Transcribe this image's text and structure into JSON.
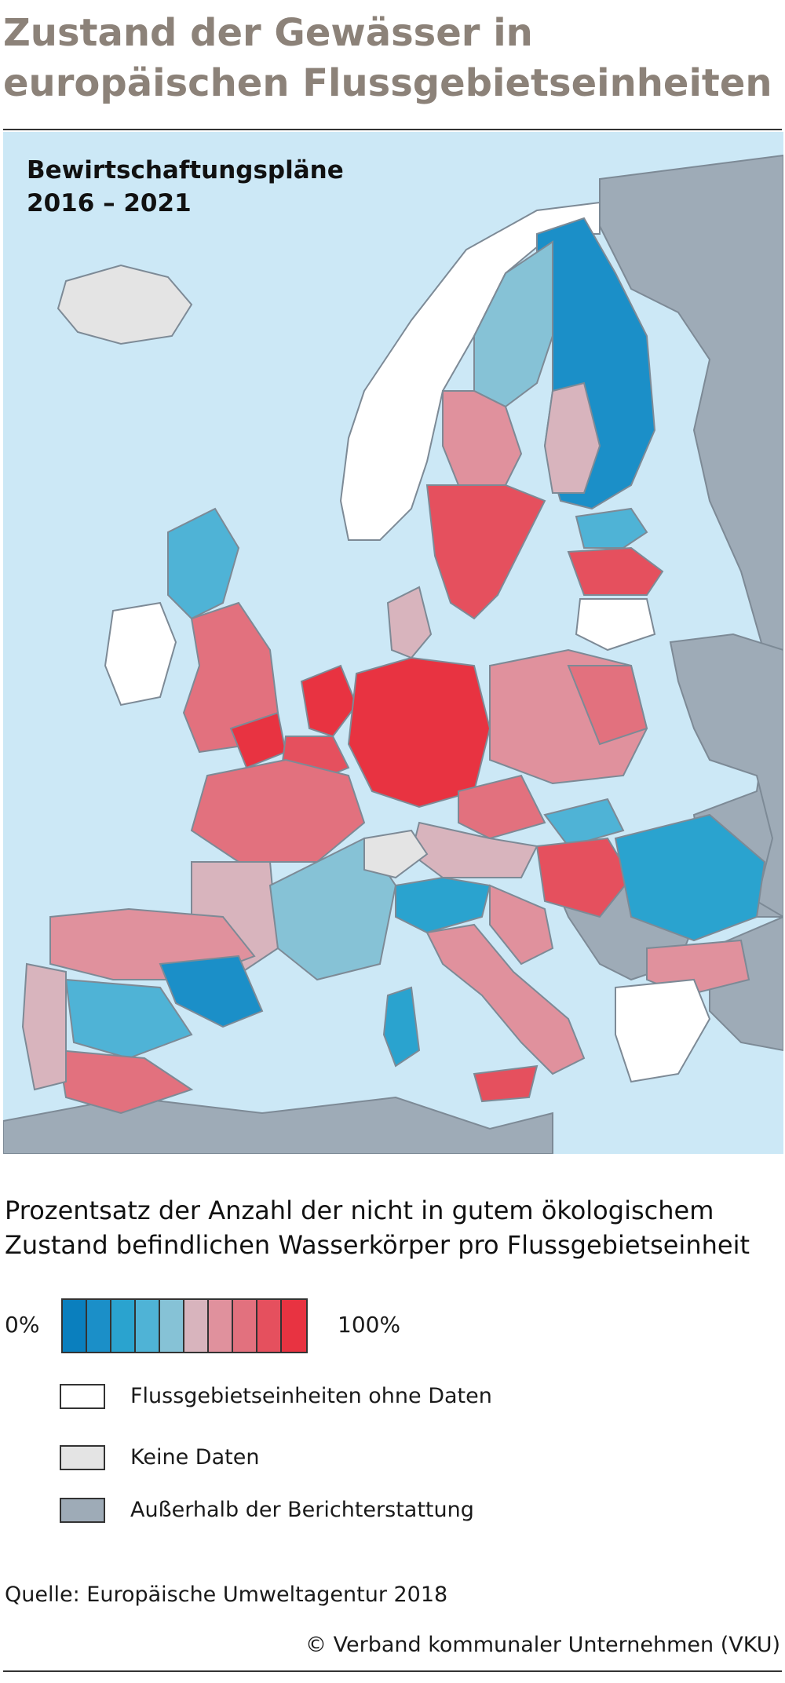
{
  "title": "Zustand der Gewässer in europäischen Flussgebietseinheiten",
  "map": {
    "caption_line1": "Bewirtschaftungspläne",
    "caption_line2": "2016 – 2021"
  },
  "legend": {
    "title": "Prozentsatz der Anzahl der nicht in gutem ökologischem Zustand befindlichen Wasserkörper pro Flussgebietseinheit",
    "scale_min": "0%",
    "scale_max": "100%",
    "scale_colors": [
      "#0a7fbe",
      "#1b8fc8",
      "#2aa3cf",
      "#4fb3d6",
      "#86c2d6",
      "#d8b4bd",
      "#e0919d",
      "#e2717e",
      "#e5505e",
      "#e83341"
    ],
    "items": [
      {
        "label": "Flussgebietseinheiten ohne Daten",
        "color": "#ffffff"
      },
      {
        "label": "Keine Daten",
        "color": "#e4e4e4"
      },
      {
        "label": "Außerhalb der Berichterstattung",
        "color": "#9eabb7"
      }
    ]
  },
  "colors": {
    "sea": "#cce8f6",
    "outside": "#9eabb7",
    "title": "#8c8279"
  },
  "source": "Quelle: Europäische Umweltagentur 2018",
  "copyright": "© Verband kommunaler Unternehmen (VKU)"
}
